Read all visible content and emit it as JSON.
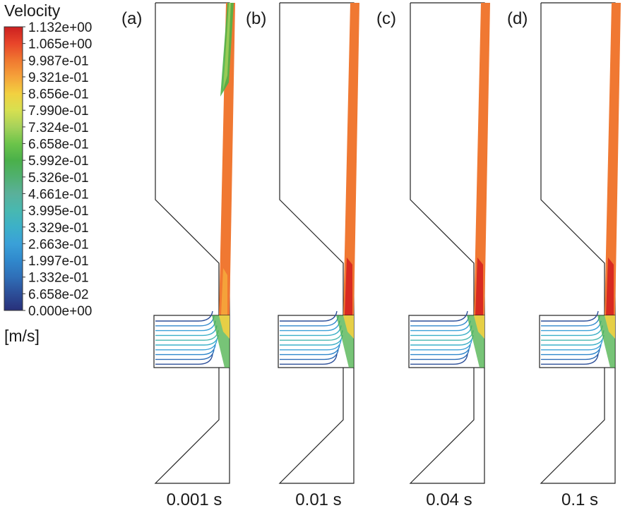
{
  "legend": {
    "title": "Velocity",
    "unit": "[m/s]",
    "ticks": [
      "1.132e+00",
      "1.065e+00",
      "9.987e-01",
      "9.321e-01",
      "8.656e-01",
      "7.990e-01",
      "7.324e-01",
      "6.658e-01",
      "5.992e-01",
      "5.326e-01",
      "4.661e-01",
      "3.995e-01",
      "3.329e-01",
      "2.663e-01",
      "1.997e-01",
      "1.332e-01",
      "6.658e-02",
      "0.000e+00"
    ],
    "colors": [
      "#cc2020",
      "#e8452a",
      "#f07830",
      "#f5a23a",
      "#f2d040",
      "#d7e050",
      "#a6d25a",
      "#6cc44a",
      "#4ab04a",
      "#50b070",
      "#5ab09a",
      "#48b8b0",
      "#3cb0c8",
      "#3aa0d8",
      "#3088cc",
      "#2f6fb8",
      "#2c4e98",
      "#28307a"
    ]
  },
  "panels": [
    {
      "letter": "(a)",
      "time": "0.001 s",
      "jet_color": "#4db348",
      "jet_extent": 0.6,
      "hot_core": false
    },
    {
      "letter": "(b)",
      "time": "0.01 s",
      "jet_color": "#f07832",
      "jet_extent": 0.0,
      "hot_core": true
    },
    {
      "letter": "(c)",
      "time": "0.04 s",
      "jet_color": "#f07832",
      "jet_extent": 0.0,
      "hot_core": true
    },
    {
      "letter": "(d)",
      "time": "0.1 s",
      "jet_color": "#f07832",
      "jet_extent": 0.0,
      "hot_core": true
    }
  ]
}
